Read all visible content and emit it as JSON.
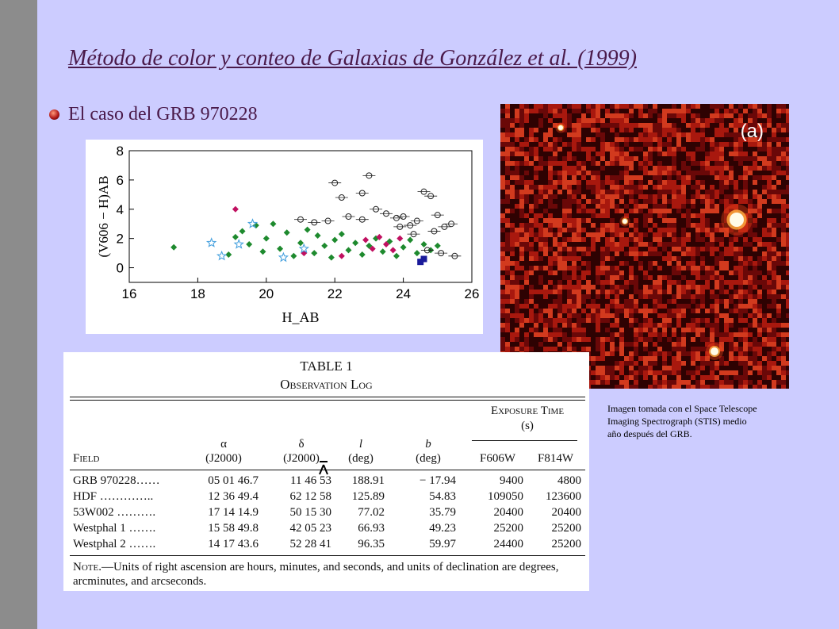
{
  "slide": {
    "title": "Método de color y conteo de Galaxias de González et al. (1999)",
    "bullet": "El caso del GRB 970228",
    "caption_lines": [
      "Imagen tomada con el Space Telescope",
      "Imaging Spectrograph (STIS) medio",
      "año después del GRB."
    ],
    "photo_label": "(a)",
    "colors": {
      "background": "#ccccff",
      "sidebar": "#8c8c8c",
      "title": "#4a1a4a"
    }
  },
  "chart_data": {
    "type": "scatter",
    "title": "",
    "xlabel": "H_AB",
    "ylabel": "(V606 − H)AB",
    "xlim": [
      16,
      26
    ],
    "ylim": [
      -1,
      8
    ],
    "xticks": [
      "16",
      "18",
      "20",
      "22",
      "24",
      "26"
    ],
    "yticks": [
      "0",
      "2",
      "4",
      "6",
      "8"
    ],
    "series": [
      {
        "color": "#1e8a2e",
        "marker": "diamond",
        "points": [
          [
            17.3,
            1.4
          ],
          [
            18.9,
            0.9
          ],
          [
            19.1,
            2.1
          ],
          [
            19.3,
            2.5
          ],
          [
            19.5,
            1.6
          ],
          [
            19.7,
            2.9
          ],
          [
            19.9,
            1.1
          ],
          [
            20.0,
            2.0
          ],
          [
            20.2,
            3.0
          ],
          [
            20.4,
            1.3
          ],
          [
            20.6,
            2.4
          ],
          [
            20.8,
            0.8
          ],
          [
            21.0,
            1.7
          ],
          [
            21.2,
            2.6
          ],
          [
            21.4,
            1.0
          ],
          [
            21.5,
            2.2
          ],
          [
            21.7,
            1.5
          ],
          [
            21.9,
            0.7
          ],
          [
            22.0,
            1.9
          ],
          [
            22.2,
            2.3
          ],
          [
            22.4,
            1.2
          ],
          [
            22.6,
            1.7
          ],
          [
            22.8,
            0.9
          ],
          [
            23.0,
            1.5
          ],
          [
            23.2,
            2.0
          ],
          [
            23.4,
            1.1
          ],
          [
            23.6,
            1.8
          ],
          [
            23.8,
            0.8
          ],
          [
            24.0,
            1.4
          ],
          [
            24.2,
            1.9
          ],
          [
            24.4,
            1.0
          ],
          [
            24.6,
            1.6
          ],
          [
            24.8,
            1.2
          ],
          [
            25.0,
            1.5
          ]
        ]
      },
      {
        "color": "#222222",
        "marker": "circle",
        "points": [
          [
            21.0,
            3.3
          ],
          [
            21.4,
            3.1
          ],
          [
            21.8,
            3.2
          ],
          [
            22.0,
            5.8
          ],
          [
            22.2,
            4.8
          ],
          [
            22.4,
            3.5
          ],
          [
            22.8,
            3.3
          ],
          [
            23.0,
            6.3
          ],
          [
            22.8,
            5.1
          ],
          [
            23.2,
            4.0
          ],
          [
            23.5,
            3.7
          ],
          [
            23.8,
            3.4
          ],
          [
            24.0,
            3.5
          ],
          [
            24.2,
            2.9
          ],
          [
            24.4,
            3.2
          ],
          [
            24.6,
            5.2
          ],
          [
            24.8,
            4.9
          ],
          [
            25.0,
            3.6
          ],
          [
            25.2,
            2.8
          ],
          [
            25.4,
            3.0
          ],
          [
            24.7,
            1.2
          ],
          [
            25.1,
            1.0
          ],
          [
            25.5,
            0.8
          ],
          [
            23.9,
            2.8
          ],
          [
            24.3,
            2.3
          ],
          [
            24.9,
            2.5
          ]
        ]
      },
      {
        "color": "#c01060",
        "marker": "diamond",
        "points": [
          [
            19.1,
            4.0
          ],
          [
            21.1,
            1.0
          ],
          [
            22.2,
            0.8
          ],
          [
            22.9,
            1.9
          ],
          [
            23.1,
            1.3
          ],
          [
            23.3,
            2.1
          ],
          [
            23.5,
            1.6
          ],
          [
            23.7,
            1.2
          ],
          [
            23.9,
            2.0
          ]
        ]
      },
      {
        "color": "#4aa3df",
        "marker": "star",
        "points": [
          [
            18.4,
            1.7
          ],
          [
            18.7,
            0.8
          ],
          [
            19.2,
            1.6
          ],
          [
            19.6,
            3.0
          ],
          [
            20.5,
            0.7
          ],
          [
            21.1,
            1.3
          ]
        ]
      },
      {
        "color": "#1a1a9a",
        "marker": "square",
        "points": [
          [
            24.5,
            0.4
          ],
          [
            24.6,
            0.6
          ]
        ]
      }
    ]
  },
  "table": {
    "title": "TABLE 1",
    "subtitle": "Observation Log",
    "exposure_header": "Exposure Time",
    "exposure_unit": "(s)",
    "columns": [
      {
        "name": "Field",
        "unit": ""
      },
      {
        "name": "α",
        "unit": "(J2000)"
      },
      {
        "name": "δ",
        "unit": "(J2000)"
      },
      {
        "name": "l",
        "unit": "(deg)"
      },
      {
        "name": "b",
        "unit": "(deg)"
      },
      {
        "name": "F606W",
        "unit": ""
      },
      {
        "name": "F814W",
        "unit": ""
      }
    ],
    "rows": [
      [
        "GRB 970228……",
        "05 01 46.7",
        "11 46 53",
        "188.91",
        "− 17.94",
        "9400",
        "4800"
      ],
      [
        "HDF …………..",
        "12 36 49.4",
        "62 12 58",
        "125.89",
        "54.83",
        "109050",
        "123600"
      ],
      [
        "53W002 ……….",
        "17 14 14.9",
        "50 15 30",
        "77.02",
        "35.79",
        "20400",
        "20400"
      ],
      [
        "Westphal 1 …….",
        "15 58 49.8",
        "42 05 23",
        "66.93",
        "49.23",
        "25200",
        "25200"
      ],
      [
        "Westphal 2 …….",
        "14 17 43.6",
        "52 28 41",
        "96.35",
        "59.97",
        "24400",
        "25200"
      ]
    ],
    "note_label": "Note.",
    "note_text": "—Units of right ascension are hours, minutes, and seconds, and units of declination are degrees, arcminutes, and arcseconds."
  }
}
